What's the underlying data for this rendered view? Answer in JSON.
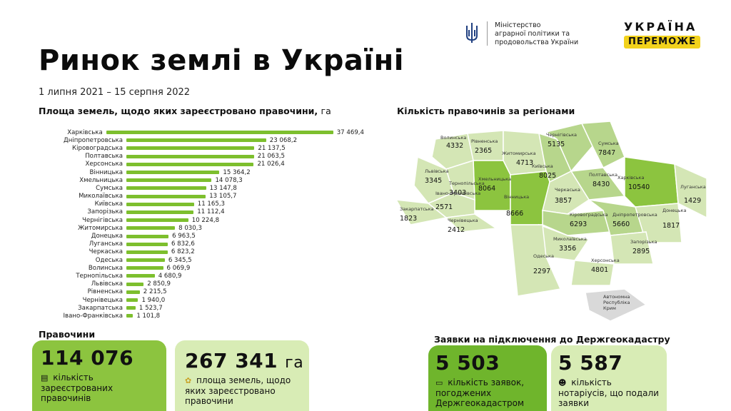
{
  "header": {
    "title": "Ринок землі в Україні",
    "dates": "1 липня 2021 – 15 серпня 2022",
    "ministry_lines": [
      "Міністерство",
      "аграрної політики та",
      "продовольства України"
    ],
    "logo_top": "УКРАЇНА",
    "logo_bottom": "ПЕРЕМОЖЕ"
  },
  "sections": {
    "area_title": "Площа земель, щодо яких зареєстровано правочини,",
    "area_unit": "га",
    "regions_title": "Кількість правочинів за регіонами",
    "deals_title": "Правочини",
    "requests_title": "Заявки на підключення до Держгеокадастру"
  },
  "chart_data": {
    "type": "bar",
    "title": "Площа земель, щодо яких зареєстровано правочини, га",
    "categories": [
      "Харківська",
      "Дніпропетровська",
      "Кіровоградська",
      "Полтавська",
      "Херсонська",
      "Вінницька",
      "Хмельницька",
      "Сумська",
      "Миколаївська",
      "Київська",
      "Запорізька",
      "Чернігівська",
      "Житомирська",
      "Донецька",
      "Луганська",
      "Черкаська",
      "Одеська",
      "Волинська",
      "Тернопільська",
      "Львівська",
      "Рівненська",
      "Чернівецька",
      "Закарпатська",
      "Івано-Франківська"
    ],
    "values": [
      37469.4,
      23068.2,
      21137.5,
      21063.5,
      21026.4,
      15364.2,
      14078.3,
      13147.8,
      13105.7,
      11165.3,
      11112.4,
      10224.8,
      8030.3,
      6963.5,
      6832.6,
      6823.2,
      6345.5,
      6069.9,
      4680.9,
      2850.9,
      2215.5,
      1940.0,
      1523.7,
      1101.8
    ],
    "value_labels": [
      "37 469,4",
      "23 068,2",
      "21 137,5",
      "21 063,5",
      "21 026,4",
      "15 364,2",
      "14 078,3",
      "13 147,8",
      "13 105,7",
      "11 165,3",
      "11 112,4",
      "10 224,8",
      "8 030,3",
      "6 963,5",
      "6 832,6",
      "6 823,2",
      "6 345,5",
      "6 069,9",
      "4 680,9",
      "2 850,9",
      "2 215,5",
      "1 940,0",
      "1 523,7",
      "1 101,8"
    ],
    "orientation": "horizontal",
    "bar_color": "#7dbf2e"
  },
  "map": {
    "regions": [
      {
        "name": "Волинська",
        "value": "4332"
      },
      {
        "name": "Рівненська",
        "value": "2365"
      },
      {
        "name": "Чернігівська",
        "value": "5135"
      },
      {
        "name": "Сумська",
        "value": "7847"
      },
      {
        "name": "Житомирська",
        "value": "4713"
      },
      {
        "name": "Київська",
        "value": "8025"
      },
      {
        "name": "Львівська",
        "value": "3345"
      },
      {
        "name": "Хмельницька",
        "value": "8064"
      },
      {
        "name": "Тернопільська",
        "value": "3403"
      },
      {
        "name": "Полтавська",
        "value": "8430"
      },
      {
        "name": "Харківська",
        "value": "10540"
      },
      {
        "name": "Луганська",
        "value": "1429"
      },
      {
        "name": "Івано-Франківська",
        "value": "2571"
      },
      {
        "name": "Вінницька",
        "value": "8666"
      },
      {
        "name": "Черкаська",
        "value": "3857"
      },
      {
        "name": "Закарпатська",
        "value": "1823"
      },
      {
        "name": "Чернівецька",
        "value": "2412"
      },
      {
        "name": "Кіровоградська",
        "value": "6293"
      },
      {
        "name": "Дніпропетровська",
        "value": "5660"
      },
      {
        "name": "Донецька",
        "value": "1817"
      },
      {
        "name": "Миколаївська",
        "value": "3356"
      },
      {
        "name": "Запорізька",
        "value": "2895"
      },
      {
        "name": "Одеська",
        "value": "2297"
      },
      {
        "name": "Херсонська",
        "value": "4801"
      },
      {
        "name": "Автономна Республіка Крим",
        "value": ""
      }
    ],
    "colors": {
      "light": "#d4e6b5",
      "mid": "#b7d68c",
      "dark": "#8cc43f",
      "darkest": "#6fb52c",
      "crimea": "#d9d9d9"
    }
  },
  "cards": {
    "deals": {
      "number": "114 076",
      "icon": "document-icon",
      "text": "кількість зареєстрованих правочинів"
    },
    "area": {
      "number": "267 341",
      "unit": "га",
      "icon": "sprout-icon",
      "text": "площа земель, щодо яких зареєстровано правочини"
    },
    "applications": {
      "number": "5 503",
      "icon": "computer-icon",
      "text": "кількість заявок, погоджених Держгеокадастром"
    },
    "notaries": {
      "number": "5 587",
      "icon": "person-icon",
      "text": "кількість нотаріусів, що подали заявки"
    }
  }
}
